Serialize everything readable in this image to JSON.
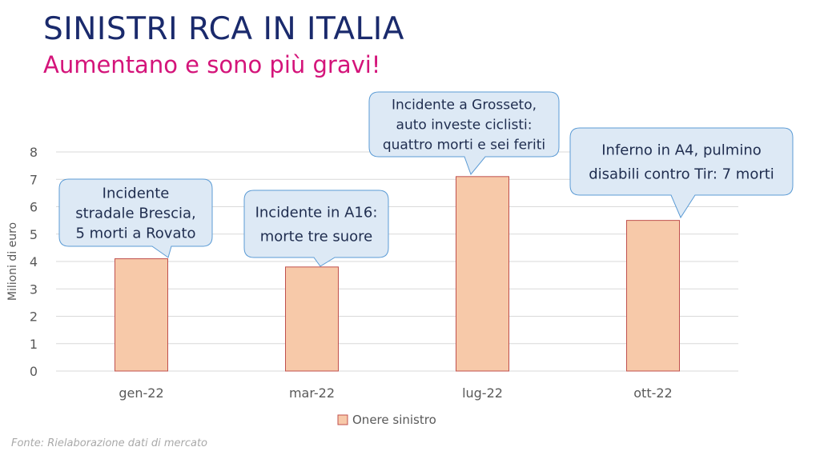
{
  "header": {
    "title": "SINISTRI RCA IN ITALIA",
    "subtitle": "Aumentano e sono più gravi!"
  },
  "footer": {
    "source": "Fonte: Rielaborazione dati di mercato"
  },
  "colors": {
    "title": "#1a2a6c",
    "subtitle": "#d4147a",
    "bar_fill": "#f7c9a9",
    "bar_stroke": "#c0504d",
    "callout_fill": "#dde9f5",
    "callout_stroke": "#5b9bd5",
    "grid": "#d9d9d9",
    "axis_text": "#595959"
  },
  "chart_data": {
    "type": "bar",
    "categories": [
      "gen-22",
      "mar-22",
      "lug-22",
      "ott-22"
    ],
    "series": [
      {
        "name": "Onere sinistro",
        "values": [
          4.1,
          3.8,
          7.1,
          5.5
        ]
      }
    ],
    "ylabel": "Milioni di euro",
    "ylim": [
      0,
      8
    ],
    "yticks": [
      0,
      1,
      2,
      3,
      4,
      5,
      6,
      7,
      8
    ],
    "grid": true,
    "legend": "bottom-center",
    "annotations": [
      {
        "category": "gen-22",
        "lines": [
          "Incidente",
          "stradale Brescia,",
          "5 morti a Rovato"
        ]
      },
      {
        "category": "mar-22",
        "lines": [
          "Incidente in A16:",
          "morte tre suore"
        ]
      },
      {
        "category": "lug-22",
        "lines": [
          "Incidente a Grosseto,",
          "auto investe ciclisti:",
          "quattro morti e sei feriti"
        ]
      },
      {
        "category": "ott-22",
        "lines": [
          "Inferno in A4, pulmino",
          "disabili contro Tir: 7 morti"
        ]
      }
    ]
  }
}
